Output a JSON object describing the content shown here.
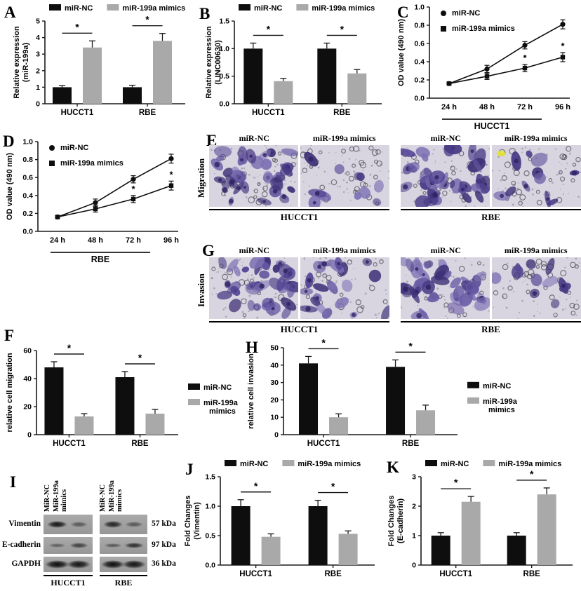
{
  "figure": {
    "background": "#ffffff",
    "colors": {
      "mir_nc": "#0e0e0e",
      "mimics": "#a9a9a9",
      "axis": "#1a1a1a"
    },
    "panels": {
      "A": {
        "letter": "A"
      },
      "B": {
        "letter": "B"
      },
      "C": {
        "letter": "C"
      },
      "D": {
        "letter": "D"
      },
      "E": {
        "letter": "E"
      },
      "F": {
        "letter": "F"
      },
      "G": {
        "letter": "G"
      },
      "H": {
        "letter": "H"
      },
      "I": {
        "letter": "I"
      },
      "J": {
        "letter": "J"
      },
      "K": {
        "letter": "K"
      }
    }
  },
  "chart_data": [
    {
      "panel": "A",
      "type": "bar",
      "title": "",
      "ylabel": [
        "Relative expression",
        "(miR-199a)"
      ],
      "categories": [
        "HUCCT1",
        "RBE"
      ],
      "series": [
        {
          "name": "miR-NC",
          "color": "#0e0e0e",
          "values": [
            1.0,
            1.0
          ],
          "errors": [
            0.1,
            0.12
          ]
        },
        {
          "name": "miR-199a mimics",
          "color": "#a9a9a9",
          "values": [
            3.4,
            3.8
          ],
          "errors": [
            0.4,
            0.45
          ]
        }
      ],
      "ylim": [
        0,
        5
      ],
      "yticks": [
        0,
        1,
        2,
        3,
        4,
        5
      ],
      "ytick_labels": [
        "0",
        "1",
        "2",
        "3",
        "4",
        "5"
      ],
      "significance": [
        {
          "group": 0,
          "label": "*"
        },
        {
          "group": 1,
          "label": "*"
        }
      ],
      "legend_position": "top",
      "grid": false
    },
    {
      "panel": "B",
      "type": "bar",
      "title": "",
      "ylabel": [
        "Relative expression",
        "(LINC00630)"
      ],
      "categories": [
        "HUCCT1",
        "RBE"
      ],
      "series": [
        {
          "name": "miR-NC",
          "color": "#0e0e0e",
          "values": [
            1.0,
            1.0
          ],
          "errors": [
            0.1,
            0.1
          ]
        },
        {
          "name": "miR-199a mimics",
          "color": "#a9a9a9",
          "values": [
            0.41,
            0.55
          ],
          "errors": [
            0.05,
            0.07
          ]
        }
      ],
      "ylim": [
        0,
        1.5
      ],
      "yticks": [
        0,
        0.5,
        1.0,
        1.5
      ],
      "ytick_labels": [
        "0.0",
        "0.5",
        "1.0",
        "1.5"
      ],
      "significance": [
        {
          "group": 0,
          "label": "*"
        },
        {
          "group": 1,
          "label": "*"
        }
      ],
      "legend_position": "top",
      "grid": false
    },
    {
      "panel": "C",
      "type": "line",
      "title": "",
      "ylabel": [
        "OD value (490 nm)"
      ],
      "x_categories": [
        "24 h",
        "48 h",
        "72 h",
        "96 h"
      ],
      "group_label": "HUCCT1",
      "series": [
        {
          "name": "miR-NC",
          "color": "#0e0e0e",
          "marker": "circle",
          "values": [
            0.16,
            0.32,
            0.58,
            0.81
          ],
          "errors": [
            0.015,
            0.04,
            0.04,
            0.05
          ],
          "sig_indices": []
        },
        {
          "name": "miR-199a mimics",
          "color": "#0e0e0e",
          "marker": "square",
          "values": [
            0.16,
            0.24,
            0.33,
            0.45
          ],
          "errors": [
            0.015,
            0.035,
            0.04,
            0.05
          ],
          "sig_indices": [
            2,
            3
          ]
        }
      ],
      "ylim": [
        0,
        1.0
      ],
      "yticks": [
        0,
        0.2,
        0.4,
        0.6,
        0.8,
        1.0
      ],
      "ytick_labels": [
        "0.0",
        "0.2",
        "0.4",
        "0.6",
        "0.8",
        "1.0"
      ],
      "legend_position": "inside",
      "grid": false
    },
    {
      "panel": "D",
      "type": "line",
      "title": "",
      "ylabel": [
        "OD value (490 nm)"
      ],
      "x_categories": [
        "24 h",
        "48 h",
        "72 h",
        "96 h"
      ],
      "group_label": "RBE",
      "series": [
        {
          "name": "miR-NC",
          "color": "#0e0e0e",
          "marker": "circle",
          "values": [
            0.16,
            0.32,
            0.58,
            0.81
          ],
          "errors": [
            0.015,
            0.04,
            0.04,
            0.05
          ],
          "sig_indices": []
        },
        {
          "name": "miR-199a mimics",
          "color": "#0e0e0e",
          "marker": "square",
          "values": [
            0.16,
            0.25,
            0.36,
            0.51
          ],
          "errors": [
            0.015,
            0.035,
            0.04,
            0.05
          ],
          "sig_indices": [
            2,
            3
          ]
        }
      ],
      "ylim": [
        0,
        1.0
      ],
      "yticks": [
        0,
        0.2,
        0.4,
        0.6,
        0.8,
        1.0
      ],
      "ytick_labels": [
        "0.0",
        "0.2",
        "0.4",
        "0.6",
        "0.8",
        "1.0"
      ],
      "legend_position": "inside",
      "grid": false
    },
    {
      "panel": "F",
      "type": "bar",
      "title": "",
      "ylabel": [
        "relative cell migration"
      ],
      "categories": [
        "HUCCT1",
        "RBE"
      ],
      "series": [
        {
          "name": "miR-NC",
          "color": "#0e0e0e",
          "values": [
            48,
            41
          ],
          "errors": [
            4,
            4
          ]
        },
        {
          "name": "miR-199a mimics",
          "color": "#a9a9a9",
          "values": [
            13,
            15
          ],
          "errors": [
            2,
            3
          ]
        }
      ],
      "ylim": [
        0,
        60
      ],
      "yticks": [
        0,
        20,
        40,
        60
      ],
      "ytick_labels": [
        "0",
        "20",
        "40",
        "60"
      ],
      "significance": [
        {
          "group": 0,
          "label": "*"
        },
        {
          "group": 1,
          "label": "*"
        }
      ],
      "legend_position": "right",
      "grid": false
    },
    {
      "panel": "H",
      "type": "bar",
      "title": "",
      "ylabel": [
        "relative cell invasion"
      ],
      "categories": [
        "HUCCT1",
        "RBE"
      ],
      "series": [
        {
          "name": "miR-NC",
          "color": "#0e0e0e",
          "values": [
            41,
            39
          ],
          "errors": [
            4,
            4
          ]
        },
        {
          "name": "miR-199a mimics",
          "color": "#a9a9a9",
          "values": [
            10,
            14
          ],
          "errors": [
            2,
            3
          ]
        }
      ],
      "ylim": [
        0,
        50
      ],
      "yticks": [
        0,
        10,
        20,
        30,
        40,
        50
      ],
      "ytick_labels": [
        "0",
        "10",
        "20",
        "30",
        "40",
        "50"
      ],
      "significance": [
        {
          "group": 0,
          "label": "*"
        },
        {
          "group": 1,
          "label": "*"
        }
      ],
      "legend_position": "right",
      "grid": false
    },
    {
      "panel": "J",
      "type": "bar",
      "title": "",
      "ylabel": [
        "Fold Changes",
        "(Vimentin)"
      ],
      "categories": [
        "HUCCT1",
        "RBE"
      ],
      "series": [
        {
          "name": "miR-NC",
          "color": "#0e0e0e",
          "values": [
            1.0,
            1.0
          ],
          "errors": [
            0.11,
            0.1
          ]
        },
        {
          "name": "miR-199a mimics",
          "color": "#a9a9a9",
          "values": [
            0.48,
            0.53
          ],
          "errors": [
            0.05,
            0.05
          ]
        }
      ],
      "ylim": [
        0,
        1.5
      ],
      "yticks": [
        0,
        0.5,
        1.0,
        1.5
      ],
      "ytick_labels": [
        "0.0",
        "0.5",
        "1.0",
        "1.5"
      ],
      "significance": [
        {
          "group": 0,
          "label": "*"
        },
        {
          "group": 1,
          "label": "*"
        }
      ],
      "legend_position": "top",
      "grid": false
    },
    {
      "panel": "K",
      "type": "bar",
      "title": "",
      "ylabel": [
        "Fold Changes",
        "(E-cadherin)"
      ],
      "categories": [
        "HUCCT1",
        "RBE"
      ],
      "series": [
        {
          "name": "miR-NC",
          "color": "#0e0e0e",
          "values": [
            1.0,
            1.0
          ],
          "errors": [
            0.1,
            0.1
          ]
        },
        {
          "name": "miR-199a mimics",
          "color": "#a9a9a9",
          "values": [
            2.15,
            2.4
          ],
          "errors": [
            0.18,
            0.22
          ]
        }
      ],
      "ylim": [
        0,
        3
      ],
      "yticks": [
        0,
        1,
        2,
        3
      ],
      "ytick_labels": [
        "0",
        "1",
        "2",
        "3"
      ],
      "significance": [
        {
          "group": 0,
          "label": "*"
        },
        {
          "group": 1,
          "label": "*"
        }
      ],
      "legend_position": "top",
      "grid": false
    }
  ],
  "micrograph_panels": [
    {
      "id": "E",
      "letter": "E",
      "row_label": "Migration",
      "groups": [
        {
          "cell_line": "HUCCT1",
          "images": [
            {
              "label": "miR-NC",
              "density": "high",
              "seed": 11
            },
            {
              "label": "miR-199a mimics",
              "density": "low",
              "seed": 22
            }
          ]
        },
        {
          "cell_line": "RBE",
          "images": [
            {
              "label": "miR-NC",
              "density": "high",
              "seed": 33
            },
            {
              "label": "miR-199a mimics",
              "density": "low",
              "seed": 44,
              "marker_color": "#e6e431"
            }
          ]
        }
      ]
    },
    {
      "id": "G",
      "letter": "G",
      "row_label": "Invasion",
      "groups": [
        {
          "cell_line": "HUCCT1",
          "images": [
            {
              "label": "miR-NC",
              "density": "high",
              "seed": 55
            },
            {
              "label": "miR-199a mimics",
              "density": "medium",
              "seed": 66
            }
          ]
        },
        {
          "cell_line": "RBE",
          "images": [
            {
              "label": "miR-NC",
              "density": "high",
              "seed": 77
            },
            {
              "label": "miR-199a mimics",
              "density": "low",
              "seed": 88
            }
          ]
        }
      ]
    }
  ],
  "western_blot": {
    "letter": "I",
    "lane_labels": [
      [
        "MiR-NC"
      ],
      [
        "MiR-199a",
        "mimics"
      ],
      [
        "MiR-NC"
      ],
      [
        "MiR-199a",
        "mimics"
      ]
    ],
    "groups": [
      "HUCCT1",
      "RBE"
    ],
    "rows": [
      {
        "protein": "Vimentin",
        "weight": "57 kDa",
        "intensities": [
          0.95,
          0.5,
          0.85,
          0.5
        ]
      },
      {
        "protein": "E-cadherin",
        "weight": "97 kDa",
        "intensities": [
          0.45,
          0.65,
          0.5,
          0.78
        ]
      },
      {
        "protein": "GAPDH",
        "weight": "36 kDa",
        "intensities": [
          1.0,
          0.95,
          1.0,
          0.95
        ]
      }
    ]
  }
}
